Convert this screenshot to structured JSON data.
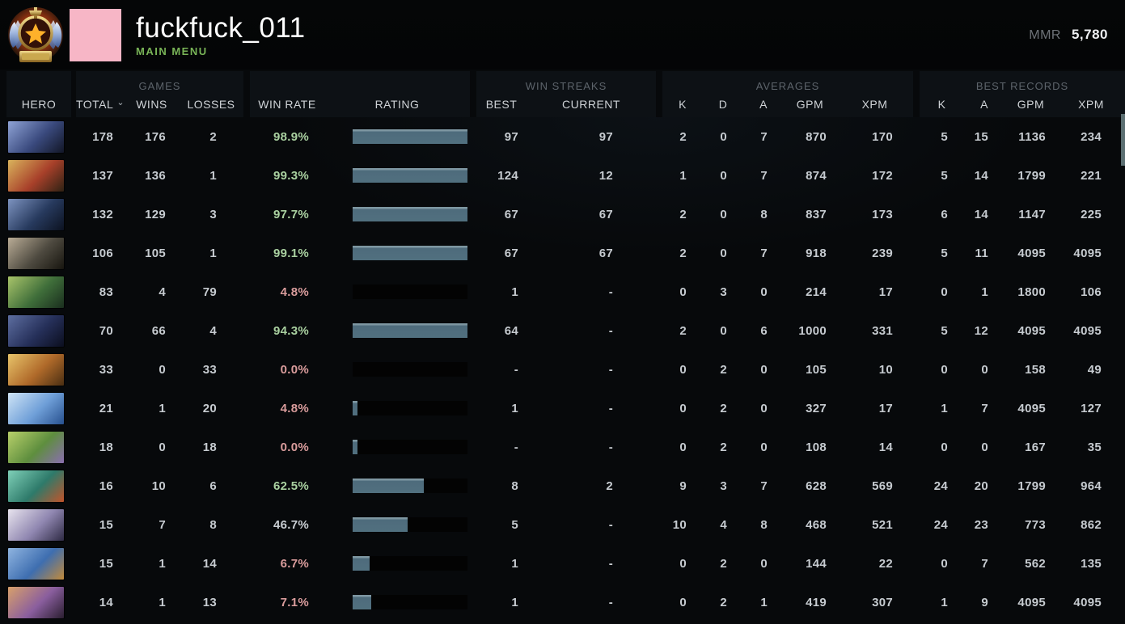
{
  "topbar": {
    "username": "fuckfuck_011",
    "subtitle": "MAIN MENU",
    "mmr_label": "MMR",
    "mmr_value": "5,780",
    "avatar_color": "#f7b6c6"
  },
  "colors": {
    "win_rate_high": "#a9d0a0",
    "win_rate_low": "#d99c9c",
    "win_rate_neutral": "#c8cdd2",
    "bar_fill": "#51707f",
    "bar_track": "#030303",
    "main_menu_green": "#79b457",
    "panel_bg": "#0d1115",
    "page_bg": "#07090b"
  },
  "header": {
    "hero": "HERO",
    "games_group": "GAMES",
    "total": "TOTAL",
    "wins": "WINS",
    "losses": "LOSSES",
    "win_rate": "WIN RATE",
    "rating": "RATING",
    "streaks_group": "WIN STREAKS",
    "best": "BEST",
    "current": "CURRENT",
    "averages_group": "AVERAGES",
    "avg_k": "K",
    "avg_d": "D",
    "avg_a": "A",
    "avg_gpm": "GPM",
    "avg_xpm": "XPM",
    "records_group": "BEST RECORDS",
    "rec_k": "K",
    "rec_a": "A",
    "rec_gpm": "GPM",
    "rec_xpm": "XPM",
    "sort_icon": "sort-descending-chevron"
  },
  "rows": [
    {
      "hero": "luna",
      "portrait": [
        "#8fa3d6",
        "#3a4a7e",
        "#121626"
      ],
      "total": "178",
      "wins": "176",
      "losses": "2",
      "win_rate": "98.9%",
      "tone": "high",
      "rating_pct": 100,
      "best": "97",
      "current": "97",
      "k": "2",
      "d": "0",
      "a": "7",
      "gpm": "870",
      "xpm": "170",
      "rec_k": "5",
      "rec_a": "15",
      "rec_gpm": "1136",
      "rec_xpm": "234"
    },
    {
      "hero": "beastmaster",
      "portrait": [
        "#d9b35c",
        "#a8402a",
        "#2e2214"
      ],
      "total": "137",
      "wins": "136",
      "losses": "1",
      "win_rate": "99.3%",
      "tone": "high",
      "rating_pct": 100,
      "best": "124",
      "current": "12",
      "k": "1",
      "d": "0",
      "a": "7",
      "gpm": "874",
      "xpm": "172",
      "rec_k": "5",
      "rec_a": "14",
      "rec_gpm": "1799",
      "rec_xpm": "221"
    },
    {
      "hero": "vengeful-spirit",
      "portrait": [
        "#7d93c0",
        "#273a5e",
        "#0c1220"
      ],
      "total": "132",
      "wins": "129",
      "losses": "3",
      "win_rate": "97.7%",
      "tone": "high",
      "rating_pct": 100,
      "best": "67",
      "current": "67",
      "k": "2",
      "d": "0",
      "a": "8",
      "gpm": "837",
      "xpm": "173",
      "rec_k": "6",
      "rec_a": "14",
      "rec_gpm": "1147",
      "rec_xpm": "225"
    },
    {
      "hero": "lycan",
      "portrait": [
        "#b9ac96",
        "#4e4a40",
        "#17150f"
      ],
      "total": "106",
      "wins": "105",
      "losses": "1",
      "win_rate": "99.1%",
      "tone": "high",
      "rating_pct": 100,
      "best": "67",
      "current": "67",
      "k": "2",
      "d": "0",
      "a": "7",
      "gpm": "918",
      "xpm": "239",
      "rec_k": "5",
      "rec_a": "11",
      "rec_gpm": "4095",
      "rec_xpm": "4095"
    },
    {
      "hero": "natures-prophet",
      "portrait": [
        "#a9c46a",
        "#3f6e3a",
        "#1a2e1e"
      ],
      "total": "83",
      "wins": "4",
      "losses": "79",
      "win_rate": "4.8%",
      "tone": "low",
      "rating_pct": 0,
      "best": "1",
      "current": "-",
      "k": "0",
      "d": "3",
      "a": "0",
      "gpm": "214",
      "xpm": "17",
      "rec_k": "0",
      "rec_a": "1",
      "rec_gpm": "1800",
      "rec_xpm": "106"
    },
    {
      "hero": "night-stalker",
      "portrait": [
        "#5d6ea0",
        "#26305a",
        "#0b0e1e"
      ],
      "total": "70",
      "wins": "66",
      "losses": "4",
      "win_rate": "94.3%",
      "tone": "high",
      "rating_pct": 100,
      "best": "64",
      "current": "-",
      "k": "2",
      "d": "0",
      "a": "6",
      "gpm": "1000",
      "xpm": "331",
      "rec_k": "5",
      "rec_a": "12",
      "rec_gpm": "4095",
      "rec_xpm": "4095"
    },
    {
      "hero": "shadow-shaman",
      "portrait": [
        "#e8c46a",
        "#b06a2a",
        "#4a2e12"
      ],
      "total": "33",
      "wins": "0",
      "losses": "33",
      "win_rate": "0.0%",
      "tone": "low",
      "rating_pct": 0,
      "best": "-",
      "current": "-",
      "k": "0",
      "d": "2",
      "a": "0",
      "gpm": "105",
      "xpm": "10",
      "rec_k": "0",
      "rec_a": "0",
      "rec_gpm": "158",
      "rec_xpm": "49"
    },
    {
      "hero": "ancient-apparition",
      "portrait": [
        "#cfe4f6",
        "#6f9fd8",
        "#27508e"
      ],
      "total": "21",
      "wins": "1",
      "losses": "20",
      "win_rate": "4.8%",
      "tone": "low",
      "rating_pct": 4,
      "best": "1",
      "current": "-",
      "k": "0",
      "d": "2",
      "a": "0",
      "gpm": "327",
      "xpm": "17",
      "rec_k": "1",
      "rec_a": "7",
      "rec_gpm": "4095",
      "rec_xpm": "127"
    },
    {
      "hero": "alchemist",
      "portrait": [
        "#b8d06a",
        "#5e8e3e",
        "#8a6eb0"
      ],
      "total": "18",
      "wins": "0",
      "losses": "18",
      "win_rate": "0.0%",
      "tone": "low",
      "rating_pct": 4,
      "best": "-",
      "current": "-",
      "k": "0",
      "d": "2",
      "a": "0",
      "gpm": "108",
      "xpm": "14",
      "rec_k": "0",
      "rec_a": "0",
      "rec_gpm": "167",
      "rec_xpm": "35"
    },
    {
      "hero": "huskar",
      "portrait": [
        "#7fd0b8",
        "#2e7a6a",
        "#c2542a"
      ],
      "total": "16",
      "wins": "10",
      "losses": "6",
      "win_rate": "62.5%",
      "tone": "high",
      "rating_pct": 62,
      "best": "8",
      "current": "2",
      "k": "9",
      "d": "3",
      "a": "7",
      "gpm": "628",
      "xpm": "569",
      "rec_k": "24",
      "rec_a": "20",
      "rec_gpm": "1799",
      "rec_xpm": "964"
    },
    {
      "hero": "mirana",
      "portrait": [
        "#e8e4ee",
        "#8f86b0",
        "#2e2a44"
      ],
      "total": "15",
      "wins": "7",
      "losses": "8",
      "win_rate": "46.7%",
      "tone": "neutral",
      "rating_pct": 48,
      "best": "5",
      "current": "-",
      "k": "10",
      "d": "4",
      "a": "8",
      "gpm": "468",
      "xpm": "521",
      "rec_k": "24",
      "rec_a": "23",
      "rec_gpm": "773",
      "rec_xpm": "862"
    },
    {
      "hero": "ogre-magi",
      "portrait": [
        "#8fb4e0",
        "#3e6eb0",
        "#c28a3a"
      ],
      "total": "15",
      "wins": "1",
      "losses": "14",
      "win_rate": "6.7%",
      "tone": "low",
      "rating_pct": 15,
      "best": "1",
      "current": "-",
      "k": "0",
      "d": "2",
      "a": "0",
      "gpm": "144",
      "xpm": "22",
      "rec_k": "0",
      "rec_a": "7",
      "rec_gpm": "562",
      "rec_xpm": "135"
    },
    {
      "hero": "anti-mage",
      "portrait": [
        "#d8a06a",
        "#8a5e9e",
        "#2a1e30"
      ],
      "total": "14",
      "wins": "1",
      "losses": "13",
      "win_rate": "7.1%",
      "tone": "low",
      "rating_pct": 16,
      "best": "1",
      "current": "-",
      "k": "0",
      "d": "2",
      "a": "1",
      "gpm": "419",
      "xpm": "307",
      "rec_k": "1",
      "rec_a": "9",
      "rec_gpm": "4095",
      "rec_xpm": "4095"
    }
  ]
}
